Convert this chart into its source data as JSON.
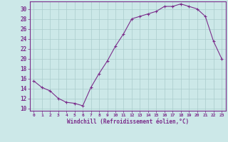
{
  "x": [
    0,
    1,
    2,
    3,
    4,
    5,
    6,
    7,
    8,
    9,
    10,
    11,
    12,
    13,
    14,
    15,
    16,
    17,
    18,
    19,
    20,
    21,
    22,
    23
  ],
  "y": [
    15.5,
    14.2,
    13.5,
    12.0,
    11.2,
    11.0,
    10.5,
    14.2,
    17.0,
    19.5,
    22.5,
    25.0,
    28.0,
    28.5,
    29.0,
    29.5,
    30.5,
    30.5,
    31.0,
    30.5,
    30.0,
    28.5,
    23.5,
    20.0
  ],
  "xlabel": "Windchill (Refroidissement éolien,°C)",
  "xlim": [
    -0.5,
    23.5
  ],
  "ylim": [
    9.5,
    31.5
  ],
  "yticks": [
    10,
    12,
    14,
    16,
    18,
    20,
    22,
    24,
    26,
    28,
    30
  ],
  "xticks": [
    0,
    1,
    2,
    3,
    4,
    5,
    6,
    7,
    8,
    9,
    10,
    11,
    12,
    13,
    14,
    15,
    16,
    17,
    18,
    19,
    20,
    21,
    22,
    23
  ],
  "line_color": "#7b2d8b",
  "marker": "+",
  "bg_color": "#cce8e8",
  "grid_color": "#aacccc",
  "tick_color": "#7b2d8b",
  "label_color": "#7b2d8b",
  "spine_color": "#7b2d8b"
}
